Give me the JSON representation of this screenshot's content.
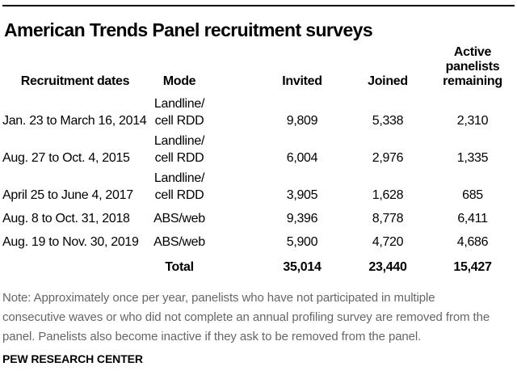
{
  "title": "American Trends Panel recruitment surveys",
  "chart_data": {
    "type": "table",
    "title": "American Trends Panel recruitment surveys",
    "columns": [
      "Recruitment dates",
      "Mode",
      "Invited",
      "Joined",
      "Active panelists remaining"
    ],
    "columns_display": [
      "Recruitment dates",
      "Mode",
      "Invited",
      "Joined",
      "Active\npanelists\nremaining"
    ],
    "rows": [
      {
        "dates": "Jan. 23 to March 16, 2014",
        "mode": "Landline/\ncell RDD",
        "invited": "9,809",
        "joined": "5,338",
        "active_remaining": "2,310"
      },
      {
        "dates": "Aug. 27 to Oct. 4, 2015",
        "mode": "Landline/\ncell RDD",
        "invited": "6,004",
        "joined": "2,976",
        "active_remaining": "1,335"
      },
      {
        "dates": "April 25 to June 4, 2017",
        "mode": "Landline/\ncell RDD",
        "invited": "3,905",
        "joined": "1,628",
        "active_remaining": "685"
      },
      {
        "dates": "Aug. 8 to Oct. 31, 2018",
        "mode": "ABS/web",
        "invited": "9,396",
        "joined": "8,778",
        "active_remaining": "6,411"
      },
      {
        "dates": "Aug. 19 to Nov. 30, 2019",
        "mode": "ABS/web",
        "invited": "5,900",
        "joined": "4,720",
        "active_remaining": "4,686"
      }
    ],
    "total": {
      "label": "Total",
      "invited": "35,014",
      "joined": "23,440",
      "active_remaining": "15,427"
    }
  },
  "note": "Note: Approximately once per year, panelists who have not participated in multiple\nconsecutive waves or who did not complete an annual profiling survey are removed from the\npanel. Panelists also become inactive if they ask to be removed from the panel.",
  "source": "PEW RESEARCH CENTER",
  "colors": {
    "text": "#000000",
    "note_gray": "#666666",
    "rule": "#000000",
    "background": "#ffffff"
  }
}
